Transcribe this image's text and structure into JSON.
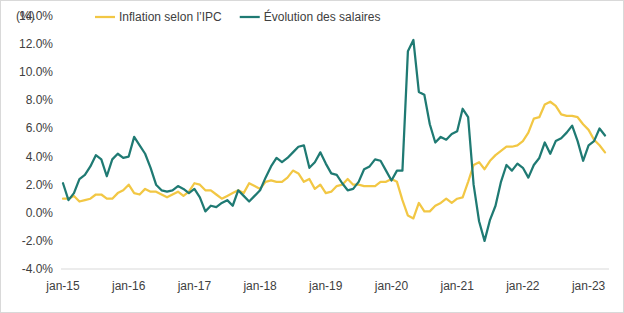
{
  "chart_data": {
    "type": "line",
    "y_label": "(%)",
    "categories": [
      "jan-15",
      null,
      null,
      null,
      null,
      null,
      null,
      null,
      null,
      null,
      null,
      null,
      "jan-16",
      null,
      null,
      null,
      null,
      null,
      null,
      null,
      null,
      null,
      null,
      null,
      "jan-17",
      null,
      null,
      null,
      null,
      null,
      null,
      null,
      null,
      null,
      null,
      null,
      "jan-18",
      null,
      null,
      null,
      null,
      null,
      null,
      null,
      null,
      null,
      null,
      null,
      "jan-19",
      null,
      null,
      null,
      null,
      null,
      null,
      null,
      null,
      null,
      null,
      null,
      "jan-20",
      null,
      null,
      null,
      null,
      null,
      null,
      null,
      null,
      null,
      null,
      null,
      "jan-21",
      null,
      null,
      null,
      null,
      null,
      null,
      null,
      null,
      null,
      null,
      null,
      "jan-22",
      null,
      null,
      null,
      null,
      null,
      null,
      null,
      null,
      null,
      null,
      null,
      "jan-23",
      null,
      null,
      null
    ],
    "series": [
      {
        "name": "Inflation selon l’IPC",
        "color": "#f2c744",
        "values": [
          1.0,
          1.0,
          1.2,
          0.8,
          0.9,
          1.0,
          1.3,
          1.3,
          1.0,
          1.0,
          1.4,
          1.6,
          2.0,
          1.4,
          1.3,
          1.7,
          1.5,
          1.5,
          1.3,
          1.1,
          1.3,
          1.5,
          1.2,
          1.5,
          2.1,
          2.0,
          1.6,
          1.6,
          1.3,
          1.0,
          1.2,
          1.4,
          1.6,
          1.4,
          2.1,
          1.9,
          1.7,
          2.2,
          2.3,
          2.2,
          2.2,
          2.5,
          3.0,
          2.8,
          2.2,
          2.4,
          1.7,
          2.0,
          1.4,
          1.5,
          1.9,
          2.0,
          2.4,
          2.0,
          2.0,
          1.9,
          1.9,
          1.9,
          2.2,
          2.2,
          2.4,
          2.2,
          0.9,
          -0.2,
          -0.4,
          0.7,
          0.1,
          0.1,
          0.5,
          0.7,
          1.0,
          0.7,
          1.0,
          1.1,
          2.2,
          3.4,
          3.6,
          3.1,
          3.7,
          4.1,
          4.4,
          4.7,
          4.7,
          4.8,
          5.1,
          5.7,
          6.7,
          6.8,
          7.7,
          7.9,
          7.6,
          7.0,
          6.9,
          6.9,
          6.8,
          6.3,
          5.9,
          5.2,
          4.8,
          4.3
        ]
      },
      {
        "name": "Évolution des salaires",
        "color": "#1f7a73",
        "values": [
          2.1,
          0.9,
          1.4,
          2.4,
          2.7,
          3.3,
          4.1,
          3.8,
          2.6,
          3.8,
          4.2,
          3.9,
          4.0,
          5.4,
          4.8,
          4.2,
          3.2,
          2.0,
          1.6,
          1.5,
          1.6,
          1.9,
          1.7,
          1.4,
          1.7,
          1.1,
          0.1,
          0.5,
          0.4,
          0.7,
          0.9,
          0.5,
          1.6,
          1.2,
          0.8,
          1.2,
          1.6,
          2.5,
          3.3,
          3.9,
          3.6,
          3.9,
          4.3,
          4.7,
          4.8,
          3.2,
          3.6,
          4.3,
          3.5,
          2.8,
          2.7,
          2.1,
          1.6,
          1.7,
          2.2,
          3.1,
          3.3,
          3.8,
          3.7,
          3.0,
          2.3,
          3.0,
          3.0,
          11.5,
          12.3,
          8.6,
          8.4,
          6.3,
          5.0,
          5.4,
          5.2,
          5.6,
          5.8,
          7.4,
          6.8,
          2.0,
          -0.6,
          -2.0,
          -0.5,
          0.5,
          2.2,
          3.4,
          3.0,
          3.5,
          3.2,
          2.5,
          3.4,
          3.9,
          5.0,
          4.2,
          5.1,
          5.3,
          5.7,
          6.2,
          5.1,
          3.7,
          4.8,
          5.1,
          6.0,
          5.5
        ]
      }
    ],
    "ylim": [
      -4,
      14
    ],
    "yticks": [
      {
        "value": -4,
        "label": "-4.0%"
      },
      {
        "value": -2,
        "label": "-2.0%"
      },
      {
        "value": 0,
        "label": "0.0%"
      },
      {
        "value": 2,
        "label": "2.0%"
      },
      {
        "value": 4,
        "label": "4.0%"
      },
      {
        "value": 6,
        "label": "6.0%"
      },
      {
        "value": 8,
        "label": "8.0%"
      },
      {
        "value": 10,
        "label": "10.0%"
      },
      {
        "value": 12,
        "label": "12.0%"
      },
      {
        "value": 14,
        "label": "14.0%"
      }
    ],
    "grid": false,
    "legend": "upper left"
  }
}
